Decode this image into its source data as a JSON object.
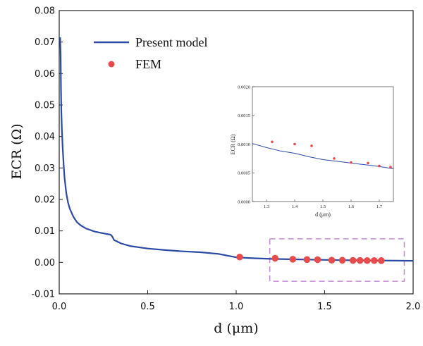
{
  "chart_data": {
    "type": "line",
    "xlabel": "d (μm)",
    "ylabel": "ECR (Ω)",
    "xlim": [
      0.0,
      2.0
    ],
    "ylim": [
      -0.01,
      0.08
    ],
    "x_ticks": [
      "0.0",
      "0.5",
      "1.0",
      "1.5",
      "2.0"
    ],
    "y_ticks": [
      "-0.01",
      "0.00",
      "0.01",
      "0.02",
      "0.03",
      "0.04",
      "0.05",
      "0.06",
      "0.07",
      "0.08"
    ],
    "legend_position": "top-left",
    "series": [
      {
        "name": "Present model",
        "kind": "line",
        "color": "#2b4aa8",
        "x": [
          0.005,
          0.008,
          0.01,
          0.012,
          0.015,
          0.02,
          0.025,
          0.03,
          0.04,
          0.05,
          0.06,
          0.08,
          0.1,
          0.12,
          0.15,
          0.2,
          0.25,
          0.29,
          0.3,
          0.31,
          0.35,
          0.4,
          0.5,
          0.6,
          0.7,
          0.8,
          0.9,
          1.0,
          1.1,
          1.2,
          1.3,
          1.4,
          1.5,
          1.6,
          1.7,
          1.8,
          1.9,
          2.0
        ],
        "y": [
          0.0715,
          0.066,
          0.055,
          0.048,
          0.042,
          0.036,
          0.031,
          0.027,
          0.022,
          0.019,
          0.017,
          0.0145,
          0.0128,
          0.0118,
          0.0108,
          0.0098,
          0.0092,
          0.0088,
          0.0082,
          0.0071,
          0.006,
          0.0052,
          0.0044,
          0.0039,
          0.0035,
          0.0032,
          0.0027,
          0.0016,
          0.0013,
          0.0011,
          0.001,
          0.0009,
          0.0008,
          0.0007,
          0.00065,
          0.0006,
          0.00055,
          0.0005
        ]
      },
      {
        "name": "FEM",
        "kind": "scatter",
        "color": "#e84b4b",
        "x": [
          1.02,
          1.22,
          1.32,
          1.4,
          1.46,
          1.54,
          1.6,
          1.66,
          1.7,
          1.74,
          1.78,
          1.82
        ],
        "y": [
          0.0017,
          0.0013,
          0.001,
          0.0009,
          0.00085,
          0.0007,
          0.00068,
          0.00062,
          0.0006,
          0.00058,
          0.00057,
          0.00056
        ]
      }
    ],
    "highlight_box": {
      "x": [
        1.19,
        1.95
      ],
      "y": [
        -0.006,
        0.0075
      ],
      "color": "#c58bd6"
    },
    "inset": {
      "xlabel": "d (μm)",
      "ylabel": "ECR (Ω)",
      "xlim": [
        1.25,
        1.75
      ],
      "ylim": [
        0.0,
        0.002
      ],
      "x_ticks": [
        "1.3",
        "1.4",
        "1.5",
        "1.6",
        "1.7"
      ],
      "y_ticks": [
        "0.0000",
        "0.0005",
        "0.0010",
        "0.0015",
        "0.0020"
      ],
      "line": {
        "x": [
          1.25,
          1.3,
          1.35,
          1.4,
          1.45,
          1.5,
          1.55,
          1.6,
          1.65,
          1.7,
          1.75
        ],
        "y": [
          0.00101,
          0.00094,
          0.00088,
          0.00084,
          0.00078,
          0.00073,
          0.0007,
          0.00067,
          0.00064,
          0.00061,
          0.00057
        ]
      },
      "points": {
        "x": [
          1.32,
          1.4,
          1.46,
          1.54,
          1.6,
          1.66,
          1.7,
          1.74
        ],
        "y": [
          0.00104,
          0.001,
          0.00097,
          0.00075,
          0.00068,
          0.00067,
          0.00062,
          0.0006
        ]
      }
    }
  }
}
